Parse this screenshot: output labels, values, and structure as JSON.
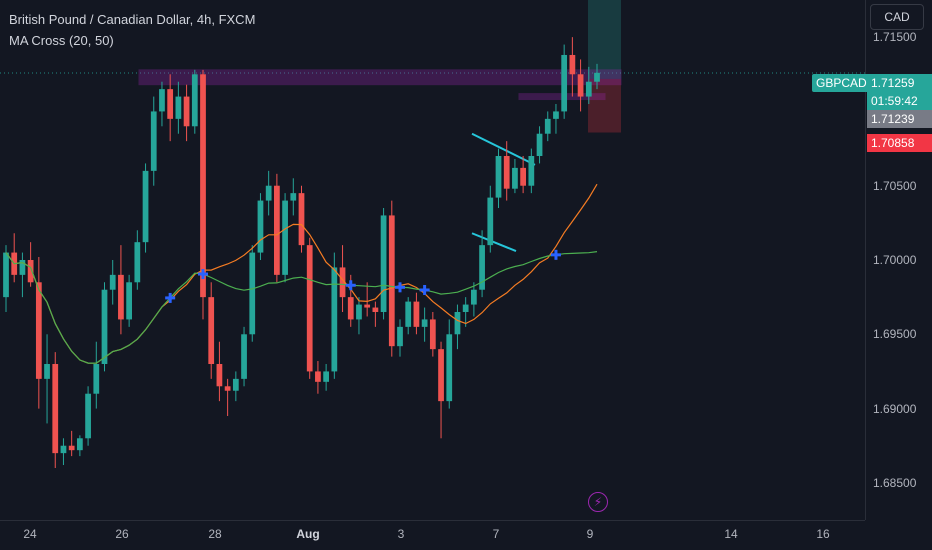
{
  "header": {
    "title": "British Pound / Canadian Dollar, 4h, FXCM",
    "indicator": "MA Cross (20, 50)"
  },
  "currency_button": "CAD",
  "price_axis": {
    "ticks": [
      "1.71500",
      "1.70500",
      "1.70000",
      "1.69500",
      "1.69000",
      "1.68500"
    ]
  },
  "time_axis": {
    "ticks": [
      {
        "label": "24",
        "bold": false
      },
      {
        "label": "26",
        "bold": false
      },
      {
        "label": "28",
        "bold": false
      },
      {
        "label": "Aug",
        "bold": true
      },
      {
        "label": "3",
        "bold": false
      },
      {
        "label": "7",
        "bold": false
      },
      {
        "label": "9",
        "bold": false
      },
      {
        "label": "14",
        "bold": false
      },
      {
        "label": "16",
        "bold": false
      }
    ]
  },
  "tags": {
    "symbol": "GBPCAD",
    "last_price": "1.71259",
    "countdown": "01:59:42",
    "grey_price": "1.71239",
    "red_price": "1.70858"
  },
  "colors": {
    "background": "#131722",
    "up": "#26a69a",
    "down": "#ef5350",
    "ma_fast": "#f57c23",
    "ma_slow": "#4caf50",
    "cross_marker": "#2962ff",
    "zone": "#9c27b0",
    "channel": "#26c6da"
  },
  "chart_data": {
    "type": "candlestick",
    "symbol": "GBPCAD",
    "timeframe": "4h",
    "ylim": [
      1.6825,
      1.7175
    ],
    "x": [
      "24",
      "26",
      "28",
      "Aug",
      "3",
      "7",
      "9",
      "14",
      "16"
    ],
    "candles": [
      [
        1.6975,
        1.701,
        1.6965,
        1.7005
      ],
      [
        1.7005,
        1.7018,
        1.6985,
        1.699
      ],
      [
        1.699,
        1.7005,
        1.6975,
        1.7
      ],
      [
        1.7,
        1.7012,
        1.6982,
        1.6985
      ],
      [
        1.6985,
        1.7002,
        1.69,
        1.692
      ],
      [
        1.692,
        1.695,
        1.689,
        1.693
      ],
      [
        1.693,
        1.6938,
        1.686,
        1.687
      ],
      [
        1.687,
        1.688,
        1.6862,
        1.6875
      ],
      [
        1.6875,
        1.6885,
        1.6868,
        1.6872
      ],
      [
        1.6872,
        1.6882,
        1.6868,
        1.688
      ],
      [
        1.688,
        1.6915,
        1.6875,
        1.691
      ],
      [
        1.691,
        1.6945,
        1.69,
        1.693
      ],
      [
        1.693,
        1.6985,
        1.6925,
        1.698
      ],
      [
        1.698,
        1.7,
        1.697,
        1.699
      ],
      [
        1.699,
        1.701,
        1.695,
        1.696
      ],
      [
        1.696,
        1.699,
        1.6955,
        1.6985
      ],
      [
        1.6985,
        1.702,
        1.698,
        1.7012
      ],
      [
        1.7012,
        1.7065,
        1.7005,
        1.706
      ],
      [
        1.706,
        1.711,
        1.705,
        1.71
      ],
      [
        1.71,
        1.712,
        1.709,
        1.7115
      ],
      [
        1.7115,
        1.7125,
        1.708,
        1.7095
      ],
      [
        1.7095,
        1.712,
        1.7085,
        1.711
      ],
      [
        1.711,
        1.7118,
        1.708,
        1.709
      ],
      [
        1.709,
        1.7128,
        1.7085,
        1.7125
      ],
      [
        1.7125,
        1.7128,
        1.696,
        1.6975
      ],
      [
        1.6975,
        1.6985,
        1.692,
        1.693
      ],
      [
        1.693,
        1.6945,
        1.6905,
        1.6915
      ],
      [
        1.6915,
        1.692,
        1.6895,
        1.6912
      ],
      [
        1.6912,
        1.6925,
        1.6905,
        1.692
      ],
      [
        1.692,
        1.6955,
        1.6915,
        1.695
      ],
      [
        1.695,
        1.701,
        1.6945,
        1.7005
      ],
      [
        1.7005,
        1.7045,
        1.7,
        1.704
      ],
      [
        1.704,
        1.706,
        1.703,
        1.705
      ],
      [
        1.705,
        1.7058,
        1.6985,
        1.699
      ],
      [
        1.699,
        1.7045,
        1.6985,
        1.704
      ],
      [
        1.704,
        1.7055,
        1.703,
        1.7045
      ],
      [
        1.7045,
        1.705,
        1.7005,
        1.701
      ],
      [
        1.701,
        1.7015,
        1.692,
        1.6925
      ],
      [
        1.6925,
        1.6932,
        1.691,
        1.6918
      ],
      [
        1.6918,
        1.693,
        1.6912,
        1.6925
      ],
      [
        1.6925,
        1.7005,
        1.692,
        1.6995
      ],
      [
        1.6995,
        1.701,
        1.6965,
        1.6975
      ],
      [
        1.6975,
        1.699,
        1.6955,
        1.696
      ],
      [
        1.696,
        1.6975,
        1.695,
        1.697
      ],
      [
        1.697,
        1.6985,
        1.6962,
        1.6968
      ],
      [
        1.6968,
        1.6972,
        1.6955,
        1.6965
      ],
      [
        1.6965,
        1.7035,
        1.696,
        1.703
      ],
      [
        1.703,
        1.704,
        1.6935,
        1.6942
      ],
      [
        1.6942,
        1.696,
        1.6935,
        1.6955
      ],
      [
        1.6955,
        1.6975,
        1.695,
        1.6972
      ],
      [
        1.6972,
        1.6978,
        1.695,
        1.6955
      ],
      [
        1.6955,
        1.6968,
        1.6945,
        1.696
      ],
      [
        1.696,
        1.6965,
        1.6935,
        1.694
      ],
      [
        1.694,
        1.6945,
        1.688,
        1.6905
      ],
      [
        1.6905,
        1.696,
        1.69,
        1.695
      ],
      [
        1.695,
        1.697,
        1.694,
        1.6965
      ],
      [
        1.6965,
        1.6975,
        1.6955,
        1.697
      ],
      [
        1.697,
        1.6985,
        1.6962,
        1.698
      ],
      [
        1.698,
        1.702,
        1.6975,
        1.701
      ],
      [
        1.701,
        1.705,
        1.7005,
        1.7042
      ],
      [
        1.7042,
        1.7075,
        1.7035,
        1.707
      ],
      [
        1.707,
        1.708,
        1.704,
        1.7048
      ],
      [
        1.7048,
        1.7068,
        1.7045,
        1.7062
      ],
      [
        1.7062,
        1.707,
        1.7045,
        1.705
      ],
      [
        1.705,
        1.7075,
        1.7045,
        1.707
      ],
      [
        1.707,
        1.709,
        1.7065,
        1.7085
      ],
      [
        1.7085,
        1.71,
        1.708,
        1.7095
      ],
      [
        1.7095,
        1.7105,
        1.7085,
        1.71
      ],
      [
        1.71,
        1.7145,
        1.7095,
        1.7138
      ],
      [
        1.7138,
        1.715,
        1.711,
        1.7125
      ],
      [
        1.7125,
        1.7135,
        1.71,
        1.711
      ],
      [
        1.711,
        1.713,
        1.7105,
        1.712
      ],
      [
        1.712,
        1.7132,
        1.7115,
        1.7126
      ]
    ],
    "ma_fast_period": 20,
    "ma_slow_period": 50,
    "levels": {
      "last": 1.71259,
      "grey": 1.71239,
      "red": 1.70858
    }
  }
}
